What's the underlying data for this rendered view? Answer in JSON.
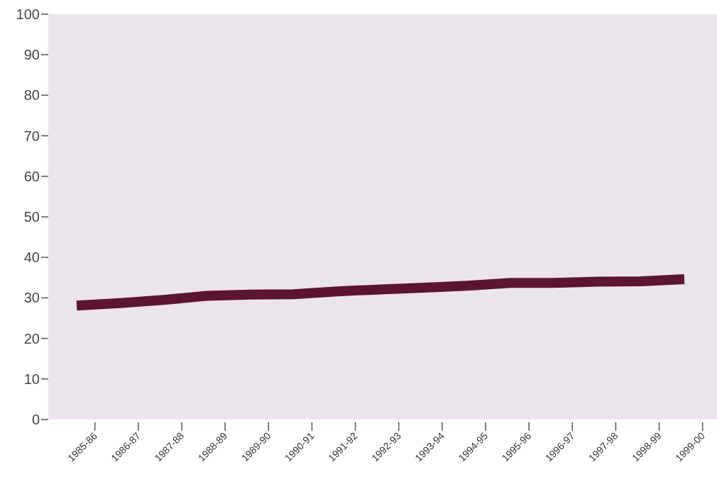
{
  "chart_data": {
    "type": "line",
    "categories": [
      "1985-86",
      "1986-87",
      "1987-88",
      "1988-89",
      "1989-90",
      "1990-91",
      "1991-92",
      "1992-93",
      "1993-94",
      "1994-95",
      "1995-96",
      "1996-97",
      "1997-98",
      "1998-99",
      "1999-00"
    ],
    "series": [
      {
        "color": "#5c1530",
        "values": [
          28.1,
          28.7,
          29.5,
          30.5,
          30.8,
          30.9,
          31.6,
          32.1,
          32.5,
          33.0,
          33.7,
          33.7,
          34.0,
          34.1,
          34.6
        ]
      }
    ],
    "ylim": [
      0,
      100
    ],
    "yticks": [
      0,
      10,
      20,
      30,
      40,
      50,
      60,
      70,
      80,
      90,
      100
    ],
    "grid": false,
    "marker": "none",
    "line_style": "solid"
  }
}
